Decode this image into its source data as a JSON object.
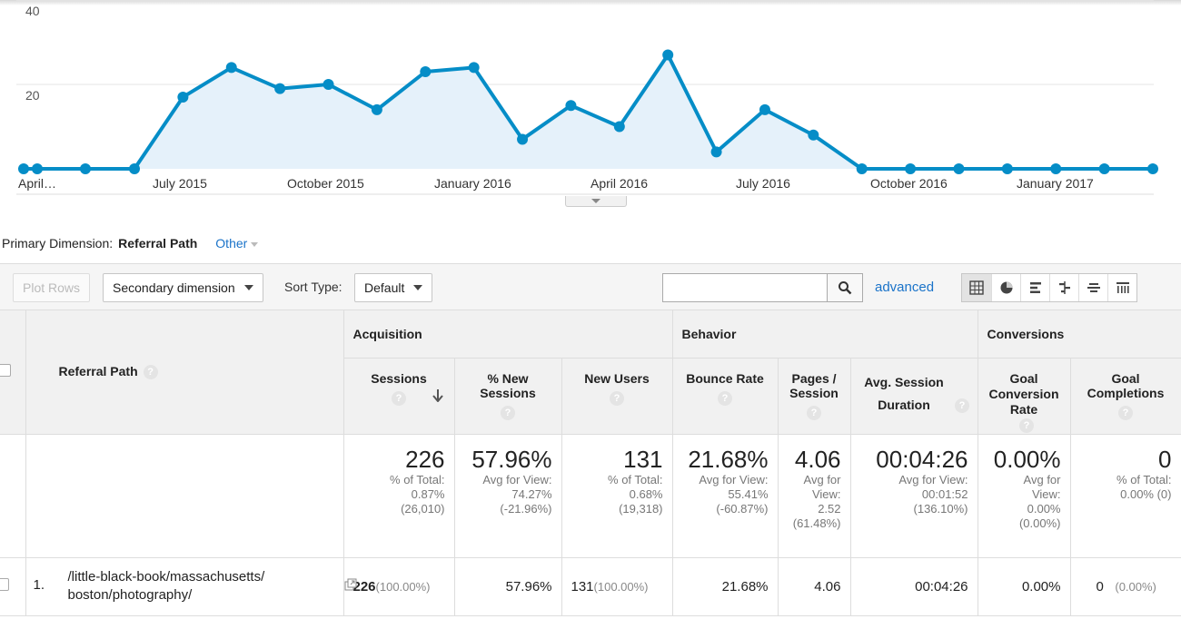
{
  "chart_data": {
    "type": "area",
    "x_tick_labels": [
      "April…",
      "July 2015",
      "October 2015",
      "January 2016",
      "April 2016",
      "July 2016",
      "October 2016",
      "January 2017"
    ],
    "y_tick_labels": [
      "40",
      "20"
    ],
    "ylim": [
      0,
      40
    ],
    "values": [
      0,
      0,
      0,
      0,
      17,
      24,
      19,
      20,
      14,
      23,
      24,
      7,
      15,
      10,
      27,
      4,
      14,
      8,
      0,
      0,
      0,
      0,
      0,
      0,
      0
    ],
    "color": "#058dc7",
    "fill": "#e5f1fa",
    "grid": true
  },
  "primary_dimension": {
    "label": "Primary Dimension:",
    "value": "Referral Path",
    "other": "Other"
  },
  "toolbar": {
    "plot_rows": "Plot Rows",
    "secondary_dimension": "Secondary dimension",
    "sort_type_label": "Sort Type:",
    "sort_type_value": "Default",
    "advanced": "advanced"
  },
  "table": {
    "groups": {
      "acquisition": "Acquisition",
      "behavior": "Behavior",
      "conversions": "Conversions"
    },
    "columns": {
      "referral_path": "Referral Path",
      "sessions": "Sessions",
      "pct_new_sessions": "% New Sessions",
      "new_users": "New Users",
      "bounce_rate": "Bounce Rate",
      "pages_session": "Pages / Session",
      "avg_session_duration": "Avg. Session Duration",
      "goal_conversion_rate": "Goal Conversion Rate",
      "goal_completions": "Goal Completions"
    },
    "totals": {
      "sessions": {
        "value": "226",
        "l1": "% of Total:",
        "l2": "0.87%",
        "l3": "(26,010)"
      },
      "pct_new_sessions": {
        "value": "57.96%",
        "l1": "Avg for View:",
        "l2": "74.27%",
        "l3": "(-21.96%)"
      },
      "new_users": {
        "value": "131",
        "l1": "% of Total:",
        "l2": "0.68%",
        "l3": "(19,318)"
      },
      "bounce_rate": {
        "value": "21.68%",
        "l1": "Avg for View:",
        "l2": "55.41%",
        "l3": "(-60.87%)"
      },
      "pages_session": {
        "value": "4.06",
        "l1": "Avg for",
        "l2": "View:",
        "l3": "2.52",
        "l4": "(61.48%)"
      },
      "avg_session_duration": {
        "value": "00:04:26",
        "l1": "Avg for View:",
        "l2": "00:01:52",
        "l3": "(136.10%)"
      },
      "goal_conversion_rate": {
        "value": "0.00%",
        "l1": "Avg for",
        "l2": "View:",
        "l3": "0.00%",
        "l4": "(0.00%)"
      },
      "goal_completions": {
        "value": "0",
        "l1": "% of Total:",
        "l2": "0.00% (0)"
      }
    },
    "rows": [
      {
        "index": "1.",
        "path_line1": "/little-black-book/massachusetts/",
        "path_line2": "boston/photography/",
        "sessions": "226",
        "sessions_pct": "(100.00%)",
        "pct_new_sessions": "57.96%",
        "new_users": "131",
        "new_users_pct": "(100.00%)",
        "bounce_rate": "21.68%",
        "pages_session": "4.06",
        "avg_session_duration": "00:04:26",
        "goal_conversion_rate": "0.00%",
        "goal_completions": "0",
        "goal_completions_pct": "(0.00%)"
      }
    ]
  }
}
